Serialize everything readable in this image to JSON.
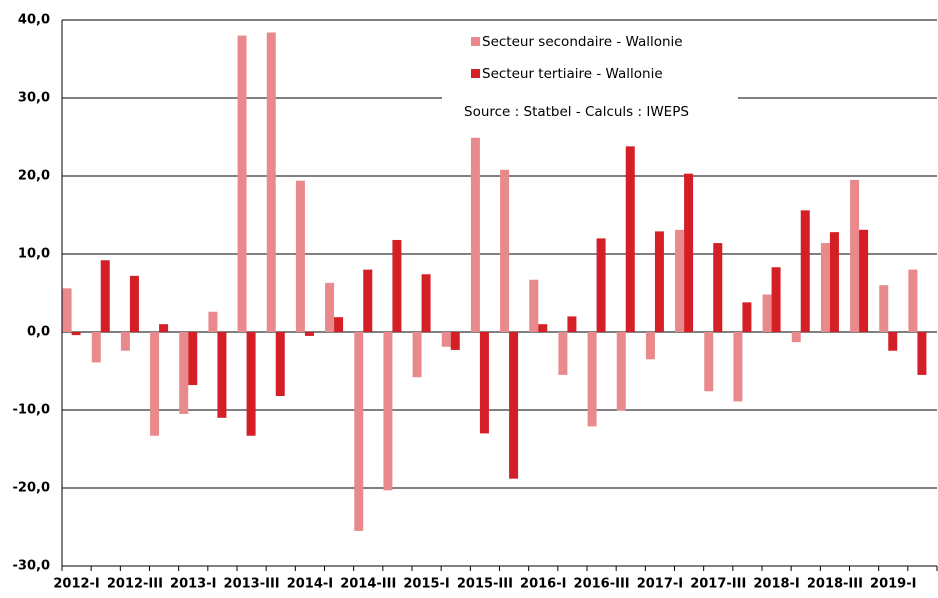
{
  "chart_data": {
    "type": "bar",
    "categories": [
      "2012-I",
      null,
      "2012-III",
      null,
      "2013-I",
      null,
      "2013-III",
      null,
      "2014-I",
      null,
      "2014-III",
      null,
      "2015-I",
      null,
      "2015-III",
      null,
      "2016-I",
      null,
      "2016-III",
      null,
      "2017-I",
      null,
      "2017-III",
      null,
      "2018-I",
      null,
      "2018-III",
      null,
      "2019-I",
      null
    ],
    "series": [
      {
        "name": "Secteur secondaire - Wallonie",
        "color": "#e8898c",
        "values": [
          5.6,
          -3.9,
          -2.4,
          -13.3,
          -10.5,
          2.6,
          38.0,
          38.4,
          19.4,
          6.3,
          -25.5,
          -20.3,
          -5.8,
          -1.9,
          24.9,
          20.8,
          6.7,
          -5.5,
          -12.1,
          -10.1,
          -3.5,
          13.1,
          -7.6,
          -8.9,
          4.8,
          -1.3,
          11.4,
          19.5,
          6.0,
          8.0
        ]
      },
      {
        "name": "Secteur tertiaire - Wallonie",
        "color": "#d41f26",
        "values": [
          -0.4,
          9.2,
          7.2,
          1.0,
          -6.8,
          -11.0,
          -13.3,
          -8.2,
          -0.5,
          1.9,
          8.0,
          11.8,
          7.4,
          -2.3,
          -13.0,
          -18.8,
          1.0,
          2.0,
          12.0,
          23.8,
          12.9,
          20.3,
          11.4,
          3.8,
          8.3,
          15.6,
          12.8,
          13.1,
          -2.4,
          -5.5
        ]
      }
    ],
    "annotation": "Source : Statbel - Calculs : IWEPS",
    "ylim": [
      -30,
      40
    ],
    "yticks": [
      {
        "value": -30,
        "label": "-30,0"
      },
      {
        "value": -20,
        "label": "-20,0"
      },
      {
        "value": -10,
        "label": "-10,0"
      },
      {
        "value": 0,
        "label": "0,0"
      },
      {
        "value": 10,
        "label": "10,0"
      },
      {
        "value": 20,
        "label": "20,0"
      },
      {
        "value": 30,
        "label": "30,0"
      },
      {
        "value": 40,
        "label": "40,0"
      }
    ],
    "grid": true
  }
}
